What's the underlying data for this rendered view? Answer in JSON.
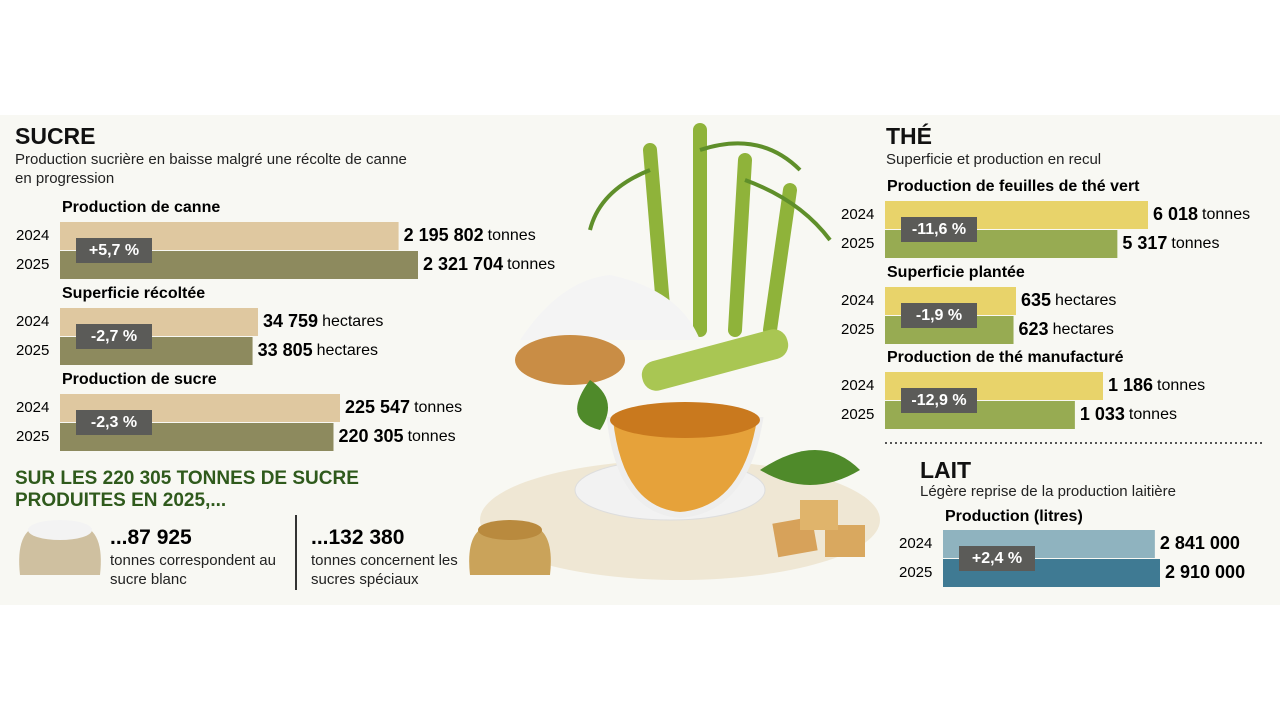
{
  "sections": [
    {
      "title": "SUCRE",
      "subtitle": "Production sucrière en baisse malgré une récolte de canne en progression"
    },
    {
      "title": "THÉ",
      "subtitle": "Superficie et production en recul"
    },
    {
      "title": "LAIT",
      "subtitle": "Légère reprise de la production laitière"
    }
  ],
  "chart_data": [
    {
      "type": "bar",
      "title": "Production de canne",
      "categories": [
        "2024",
        "2025"
      ],
      "values": [
        2195802,
        2321704
      ],
      "value_labels": [
        "2 195 802",
        "2 321 704"
      ],
      "unit": "tonnes",
      "change": "+5,7 %",
      "colors": [
        "#dfc8a0",
        "#8d8a5e"
      ]
    },
    {
      "type": "bar",
      "title": "Superficie récoltée",
      "categories": [
        "2024",
        "2025"
      ],
      "values": [
        34759,
        33805
      ],
      "value_labels": [
        "34 759",
        "33 805"
      ],
      "unit": "hectares",
      "change": "-2,7 %",
      "colors": [
        "#dfc8a0",
        "#8d8a5e"
      ]
    },
    {
      "type": "bar",
      "title": "Production de sucre",
      "categories": [
        "2024",
        "2025"
      ],
      "values": [
        225547,
        220305
      ],
      "value_labels": [
        "225 547",
        "220 305"
      ],
      "unit": "tonnes",
      "change": "-2,3 %",
      "colors": [
        "#dfc8a0",
        "#8d8a5e"
      ]
    },
    {
      "type": "bar",
      "title": "Production de feuilles de thé vert",
      "categories": [
        "2024",
        "2025"
      ],
      "values": [
        6018,
        5317
      ],
      "value_labels": [
        "6 018",
        "5 317"
      ],
      "unit": "tonnes",
      "change": "-11,6 %",
      "colors": [
        "#e8d36a",
        "#97ab52"
      ]
    },
    {
      "type": "bar",
      "title": "Superficie plantée",
      "categories": [
        "2024",
        "2025"
      ],
      "values": [
        635,
        623
      ],
      "unit": "hectares",
      "change": "-1,9 %",
      "colors": [
        "#e8d36a",
        "#97ab52"
      ]
    },
    {
      "type": "bar",
      "title": "Production de thé manufacturé",
      "categories": [
        "2024",
        "2025"
      ],
      "values": [
        1186,
        1033
      ],
      "value_labels": [
        "1 186",
        "1 033"
      ],
      "unit": "tonnes",
      "change": "-12,9 %",
      "colors": [
        "#e8d36a",
        "#97ab52"
      ]
    },
    {
      "type": "bar",
      "title": "Production (litres)",
      "categories": [
        "2024",
        "2025"
      ],
      "values": [
        2841000,
        2910000
      ],
      "value_labels": [
        "2 841 000",
        "2 910 000"
      ],
      "change": "+2,4 %",
      "colors": [
        "#8fb3bf",
        "#3f7a93"
      ]
    }
  ],
  "sugar_split": {
    "heading": "SUR LES 220 305 TONNES DE SUCRE PRODUITES EN 2025,...",
    "items": [
      {
        "amount": "...87 925",
        "text": "tonnes correspondent au sucre blanc"
      },
      {
        "amount": "...132 380",
        "text": "tonnes concernent les sucres spéciaux"
      }
    ]
  }
}
